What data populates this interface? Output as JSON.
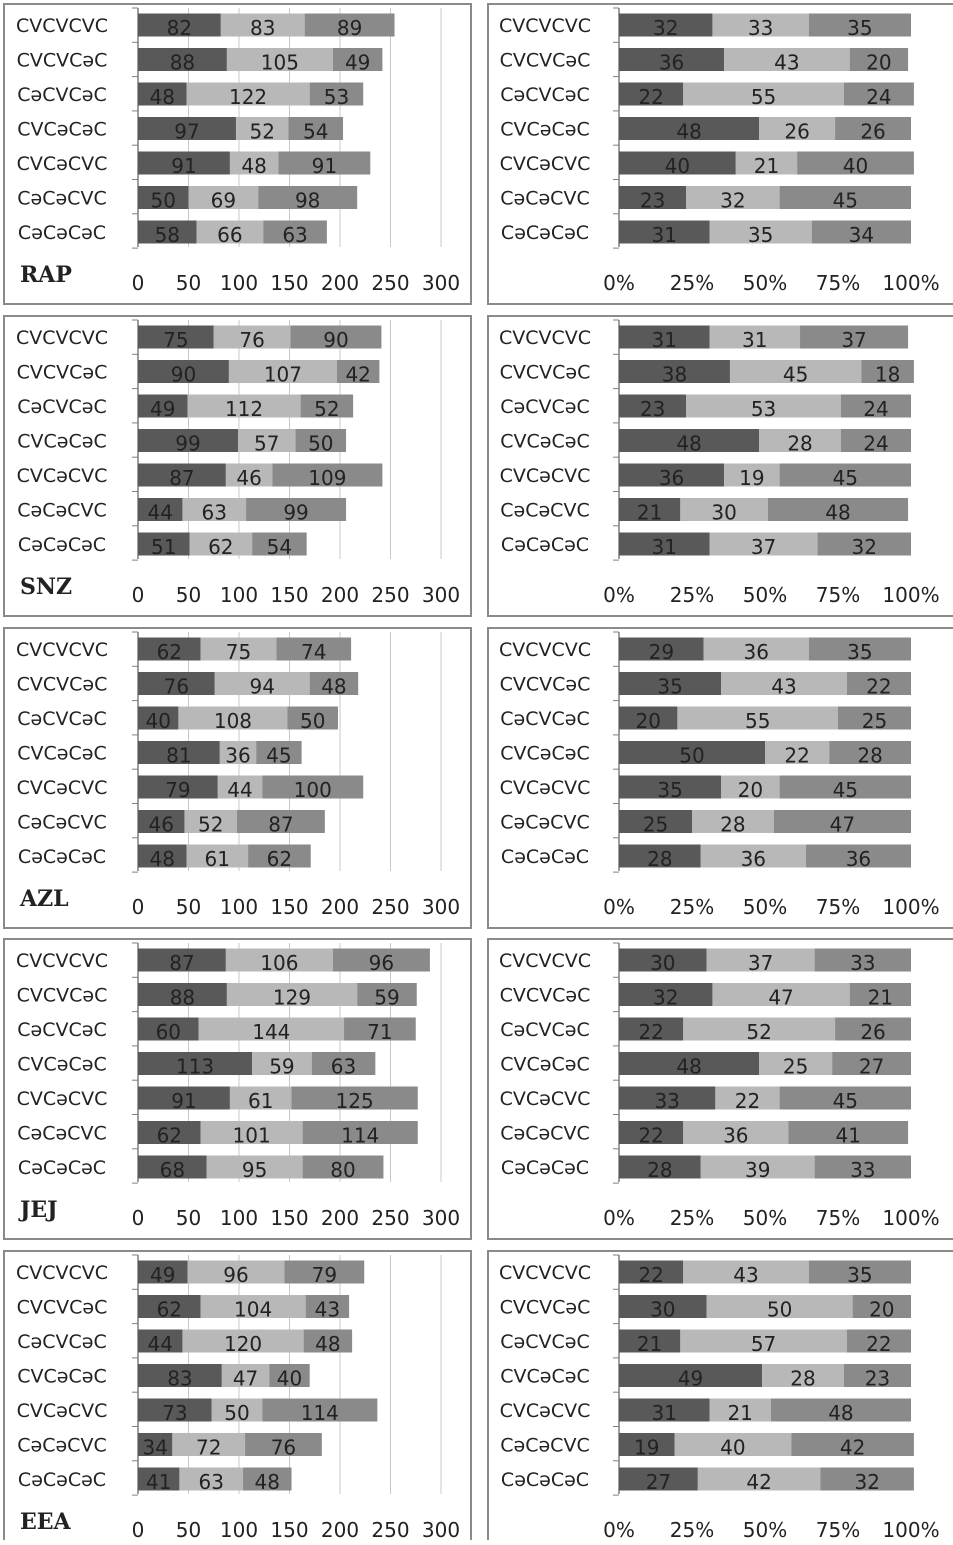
{
  "colors": {
    "seg1": "#595959",
    "seg2": "#b8b8b8",
    "seg3": "#8a8a8a",
    "frame": "#8a8a8a",
    "grid": "#c8c8c8",
    "axis": "#7f7f7f"
  },
  "chart_data": [
    {
      "type": "bar",
      "orientation": "horizontal",
      "stacked": true,
      "panel_label": "RAP",
      "categories": [
        "CVCVCVC",
        "CVCVCəC",
        "CəCVCəC",
        "CVCəCəC",
        "CVCəCVC",
        "CəCəCVC",
        "CəCəCəC"
      ],
      "series": [
        {
          "values": [
            82,
            88,
            48,
            97,
            91,
            50,
            58
          ]
        },
        {
          "values": [
            83,
            105,
            122,
            52,
            48,
            69,
            66
          ]
        },
        {
          "values": [
            89,
            49,
            53,
            54,
            91,
            98,
            63
          ]
        }
      ],
      "xlim": [
        0,
        300
      ],
      "xticks": [
        0,
        50,
        100,
        150,
        200,
        250,
        300
      ],
      "grid": true
    },
    {
      "type": "bar",
      "orientation": "horizontal",
      "stacked": true,
      "percent": true,
      "panel_label": "",
      "categories": [
        "CVCVCVC",
        "CVCVCəC",
        "CəCVCəC",
        "CVCəCəC",
        "CVCəCVC",
        "CəCəCVC",
        "CəCəCəC"
      ],
      "series": [
        {
          "values": [
            32,
            36,
            22,
            48,
            40,
            23,
            31
          ]
        },
        {
          "values": [
            33,
            43,
            55,
            26,
            21,
            32,
            35
          ]
        },
        {
          "values": [
            35,
            20,
            24,
            26,
            40,
            45,
            34
          ]
        }
      ],
      "xlim": [
        0,
        100
      ],
      "xticks": [
        "0%",
        "25%",
        "50%",
        "75%",
        "100%"
      ],
      "grid": false
    },
    {
      "type": "bar",
      "orientation": "horizontal",
      "stacked": true,
      "panel_label": "SNZ",
      "categories": [
        "CVCVCVC",
        "CVCVCəC",
        "CəCVCəC",
        "CVCəCəC",
        "CVCəCVC",
        "CəCəCVC",
        "CəCəCəC"
      ],
      "series": [
        {
          "values": [
            75,
            90,
            49,
            99,
            87,
            44,
            51
          ]
        },
        {
          "values": [
            76,
            107,
            112,
            57,
            46,
            63,
            62
          ]
        },
        {
          "values": [
            90,
            42,
            52,
            50,
            109,
            99,
            54
          ]
        }
      ],
      "xlim": [
        0,
        300
      ],
      "xticks": [
        0,
        50,
        100,
        150,
        200,
        250,
        300
      ],
      "grid": true
    },
    {
      "type": "bar",
      "orientation": "horizontal",
      "stacked": true,
      "percent": true,
      "panel_label": "",
      "categories": [
        "CVCVCVC",
        "CVCVCəC",
        "CəCVCəC",
        "CVCəCəC",
        "CVCəCVC",
        "CəCəCVC",
        "CəCəCəC"
      ],
      "series": [
        {
          "values": [
            31,
            38,
            23,
            48,
            36,
            21,
            31
          ]
        },
        {
          "values": [
            31,
            45,
            53,
            28,
            19,
            30,
            37
          ]
        },
        {
          "values": [
            37,
            18,
            24,
            24,
            45,
            48,
            32
          ]
        }
      ],
      "xlim": [
        0,
        100
      ],
      "xticks": [
        "0%",
        "25%",
        "50%",
        "75%",
        "100%"
      ],
      "grid": false
    },
    {
      "type": "bar",
      "orientation": "horizontal",
      "stacked": true,
      "panel_label": "AZL",
      "categories": [
        "CVCVCVC",
        "CVCVCəC",
        "CəCVCəC",
        "CVCəCəC",
        "CVCəCVC",
        "CəCəCVC",
        "CəCəCəC"
      ],
      "series": [
        {
          "values": [
            62,
            76,
            40,
            81,
            79,
            46,
            48
          ]
        },
        {
          "values": [
            75,
            94,
            108,
            36,
            44,
            52,
            61
          ]
        },
        {
          "values": [
            74,
            48,
            50,
            45,
            100,
            87,
            62
          ]
        }
      ],
      "xlim": [
        0,
        300
      ],
      "xticks": [
        0,
        50,
        100,
        150,
        200,
        250,
        300
      ],
      "grid": true
    },
    {
      "type": "bar",
      "orientation": "horizontal",
      "stacked": true,
      "percent": true,
      "panel_label": "",
      "categories": [
        "CVCVCVC",
        "CVCVCəC",
        "CəCVCəC",
        "CVCəCəC",
        "CVCəCVC",
        "CəCəCVC",
        "CəCəCəC"
      ],
      "series": [
        {
          "values": [
            29,
            35,
            20,
            50,
            35,
            25,
            28
          ]
        },
        {
          "values": [
            36,
            43,
            55,
            22,
            20,
            28,
            36
          ]
        },
        {
          "values": [
            35,
            22,
            25,
            28,
            45,
            47,
            36
          ]
        }
      ],
      "xlim": [
        0,
        100
      ],
      "xticks": [
        "0%",
        "25%",
        "50%",
        "75%",
        "100%"
      ],
      "grid": false
    },
    {
      "type": "bar",
      "orientation": "horizontal",
      "stacked": true,
      "panel_label": "JEJ",
      "categories": [
        "CVCVCVC",
        "CVCVCəC",
        "CəCVCəC",
        "CVCəCəC",
        "CVCəCVC",
        "CəCəCVC",
        "CəCəCəC"
      ],
      "series": [
        {
          "values": [
            87,
            88,
            60,
            113,
            91,
            62,
            68
          ]
        },
        {
          "values": [
            106,
            129,
            144,
            59,
            61,
            101,
            95
          ]
        },
        {
          "values": [
            96,
            59,
            71,
            63,
            125,
            114,
            80
          ]
        }
      ],
      "xlim": [
        0,
        300
      ],
      "xticks": [
        0,
        50,
        100,
        150,
        200,
        250,
        300
      ],
      "grid": true
    },
    {
      "type": "bar",
      "orientation": "horizontal",
      "stacked": true,
      "percent": true,
      "panel_label": "",
      "categories": [
        "CVCVCVC",
        "CVCVCəC",
        "CəCVCəC",
        "CVCəCəC",
        "CVCəCVC",
        "CəCəCVC",
        "CəCəCəC"
      ],
      "series": [
        {
          "values": [
            30,
            32,
            22,
            48,
            33,
            22,
            28
          ]
        },
        {
          "values": [
            37,
            47,
            52,
            25,
            22,
            36,
            39
          ]
        },
        {
          "values": [
            33,
            21,
            26,
            27,
            45,
            41,
            33
          ]
        }
      ],
      "xlim": [
        0,
        100
      ],
      "xticks": [
        "0%",
        "25%",
        "50%",
        "75%",
        "100%"
      ],
      "grid": false
    },
    {
      "type": "bar",
      "orientation": "horizontal",
      "stacked": true,
      "panel_label": "EEA",
      "categories": [
        "CVCVCVC",
        "CVCVCəC",
        "CəCVCəC",
        "CVCəCəC",
        "CVCəCVC",
        "CəCəCVC",
        "CəCəCəC"
      ],
      "series": [
        {
          "values": [
            49,
            62,
            44,
            83,
            73,
            34,
            41
          ]
        },
        {
          "values": [
            96,
            104,
            120,
            47,
            50,
            72,
            63
          ]
        },
        {
          "values": [
            79,
            43,
            48,
            40,
            114,
            76,
            48
          ]
        }
      ],
      "xlim": [
        0,
        300
      ],
      "xticks": [
        0,
        50,
        100,
        150,
        200,
        250,
        300
      ],
      "grid": true
    },
    {
      "type": "bar",
      "orientation": "horizontal",
      "stacked": true,
      "percent": true,
      "panel_label": "",
      "categories": [
        "CVCVCVC",
        "CVCVCəC",
        "CəCVCəC",
        "CVCəCəC",
        "CVCəCVC",
        "CəCəCVC",
        "CəCəCəC"
      ],
      "series": [
        {
          "values": [
            22,
            30,
            21,
            49,
            31,
            19,
            27
          ]
        },
        {
          "values": [
            43,
            50,
            57,
            28,
            21,
            40,
            42
          ]
        },
        {
          "values": [
            35,
            20,
            22,
            23,
            48,
            42,
            32
          ]
        }
      ],
      "xlim": [
        0,
        100
      ],
      "xticks": [
        "0%",
        "25%",
        "50%",
        "75%",
        "100%"
      ],
      "grid": false
    }
  ]
}
